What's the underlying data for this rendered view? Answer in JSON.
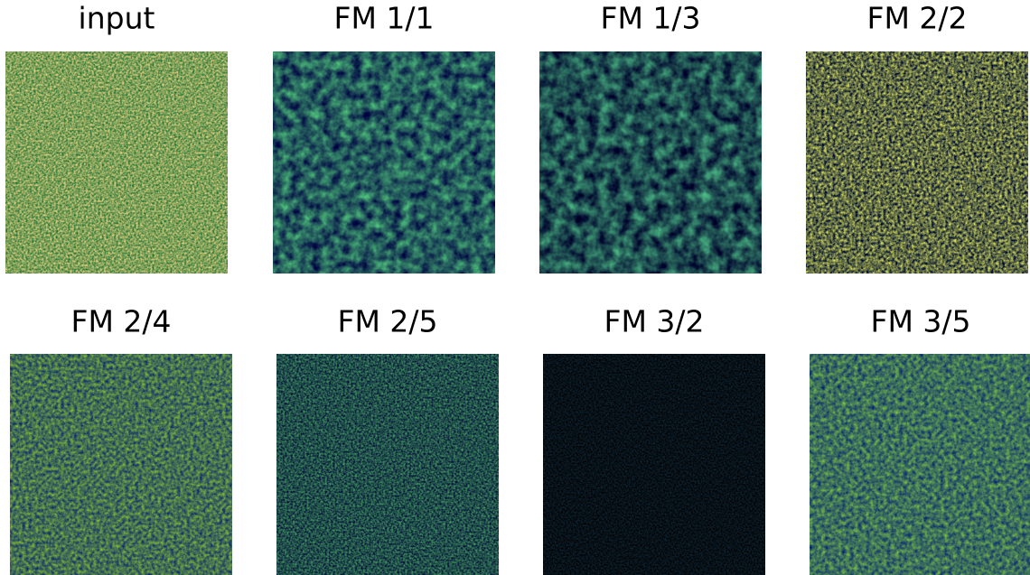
{
  "panels": [
    {
      "title": "input"
    },
    {
      "title": "FM 1/1"
    },
    {
      "title": "FM 1/3"
    },
    {
      "title": "FM 2/2"
    },
    {
      "title": "FM 2/4"
    },
    {
      "title": "FM 2/5"
    },
    {
      "title": "FM 3/2"
    },
    {
      "title": "FM 3/5"
    }
  ]
}
